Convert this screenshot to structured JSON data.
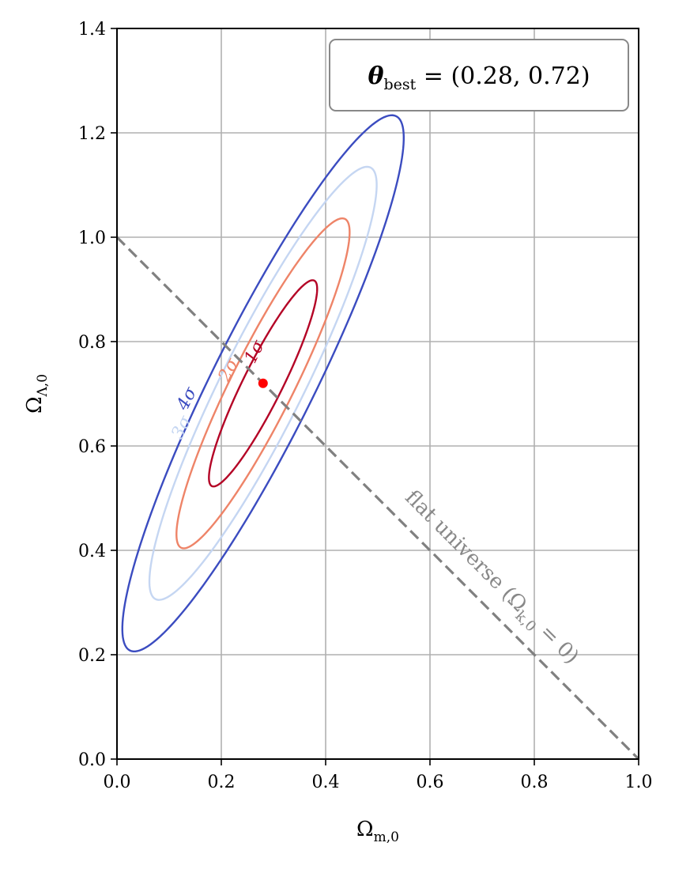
{
  "chart_data": {
    "type": "contour",
    "title": "",
    "xlabel": {
      "main": "Ω",
      "sub": "m,0"
    },
    "ylabel": {
      "main": "Ω",
      "sub": "Λ,0"
    },
    "xlim": [
      0.0,
      1.0
    ],
    "ylim": [
      0.0,
      1.4
    ],
    "xticks": [
      "0.0",
      "0.2",
      "0.4",
      "0.6",
      "0.8",
      "1.0"
    ],
    "yticks": [
      "0.0",
      "0.2",
      "0.4",
      "0.6",
      "0.8",
      "1.0",
      "1.2",
      "1.4"
    ],
    "xtick_values": [
      0.0,
      0.2,
      0.4,
      0.6,
      0.8,
      1.0
    ],
    "ytick_values": [
      0.0,
      0.2,
      0.4,
      0.6,
      0.8,
      1.0,
      1.2,
      1.4
    ],
    "grid": true,
    "best_fit": {
      "x": 0.28,
      "y": 0.72,
      "color": "#ff0000"
    },
    "best_fit_label": {
      "main": "θ",
      "sub": "best",
      "rest": " = (0.28, 0.72)"
    },
    "contour_frame": {
      "center_x": 0.28,
      "center_y": 0.72,
      "angle_deg": 63.5,
      "semi_major": 0.22,
      "semi_minor": 0.0375
    },
    "contours": [
      {
        "label": "1σ",
        "scale": 1.0,
        "color": "#b40426",
        "label_at": [
          0.265,
          0.78
        ]
      },
      {
        "label": "2σ",
        "scale": 1.6,
        "color": "#ee8468",
        "label_at": [
          0.215,
          0.745
        ]
      },
      {
        "label": "3σ",
        "scale": 2.1,
        "color": "#c5d6f2",
        "label_at": [
          0.125,
          0.635
        ]
      },
      {
        "label": "4σ",
        "scale": 2.6,
        "color": "#3b4cc0",
        "label_at": [
          0.135,
          0.69
        ]
      }
    ],
    "flat_line": {
      "points": [
        [
          0.0,
          1.0
        ],
        [
          1.0,
          0.0
        ]
      ],
      "color": "#808080",
      "label": "flat universe (Ω",
      "label_sub": "k,0",
      "label_end": " = 0)",
      "label_at": [
        0.71,
        0.34
      ]
    }
  }
}
